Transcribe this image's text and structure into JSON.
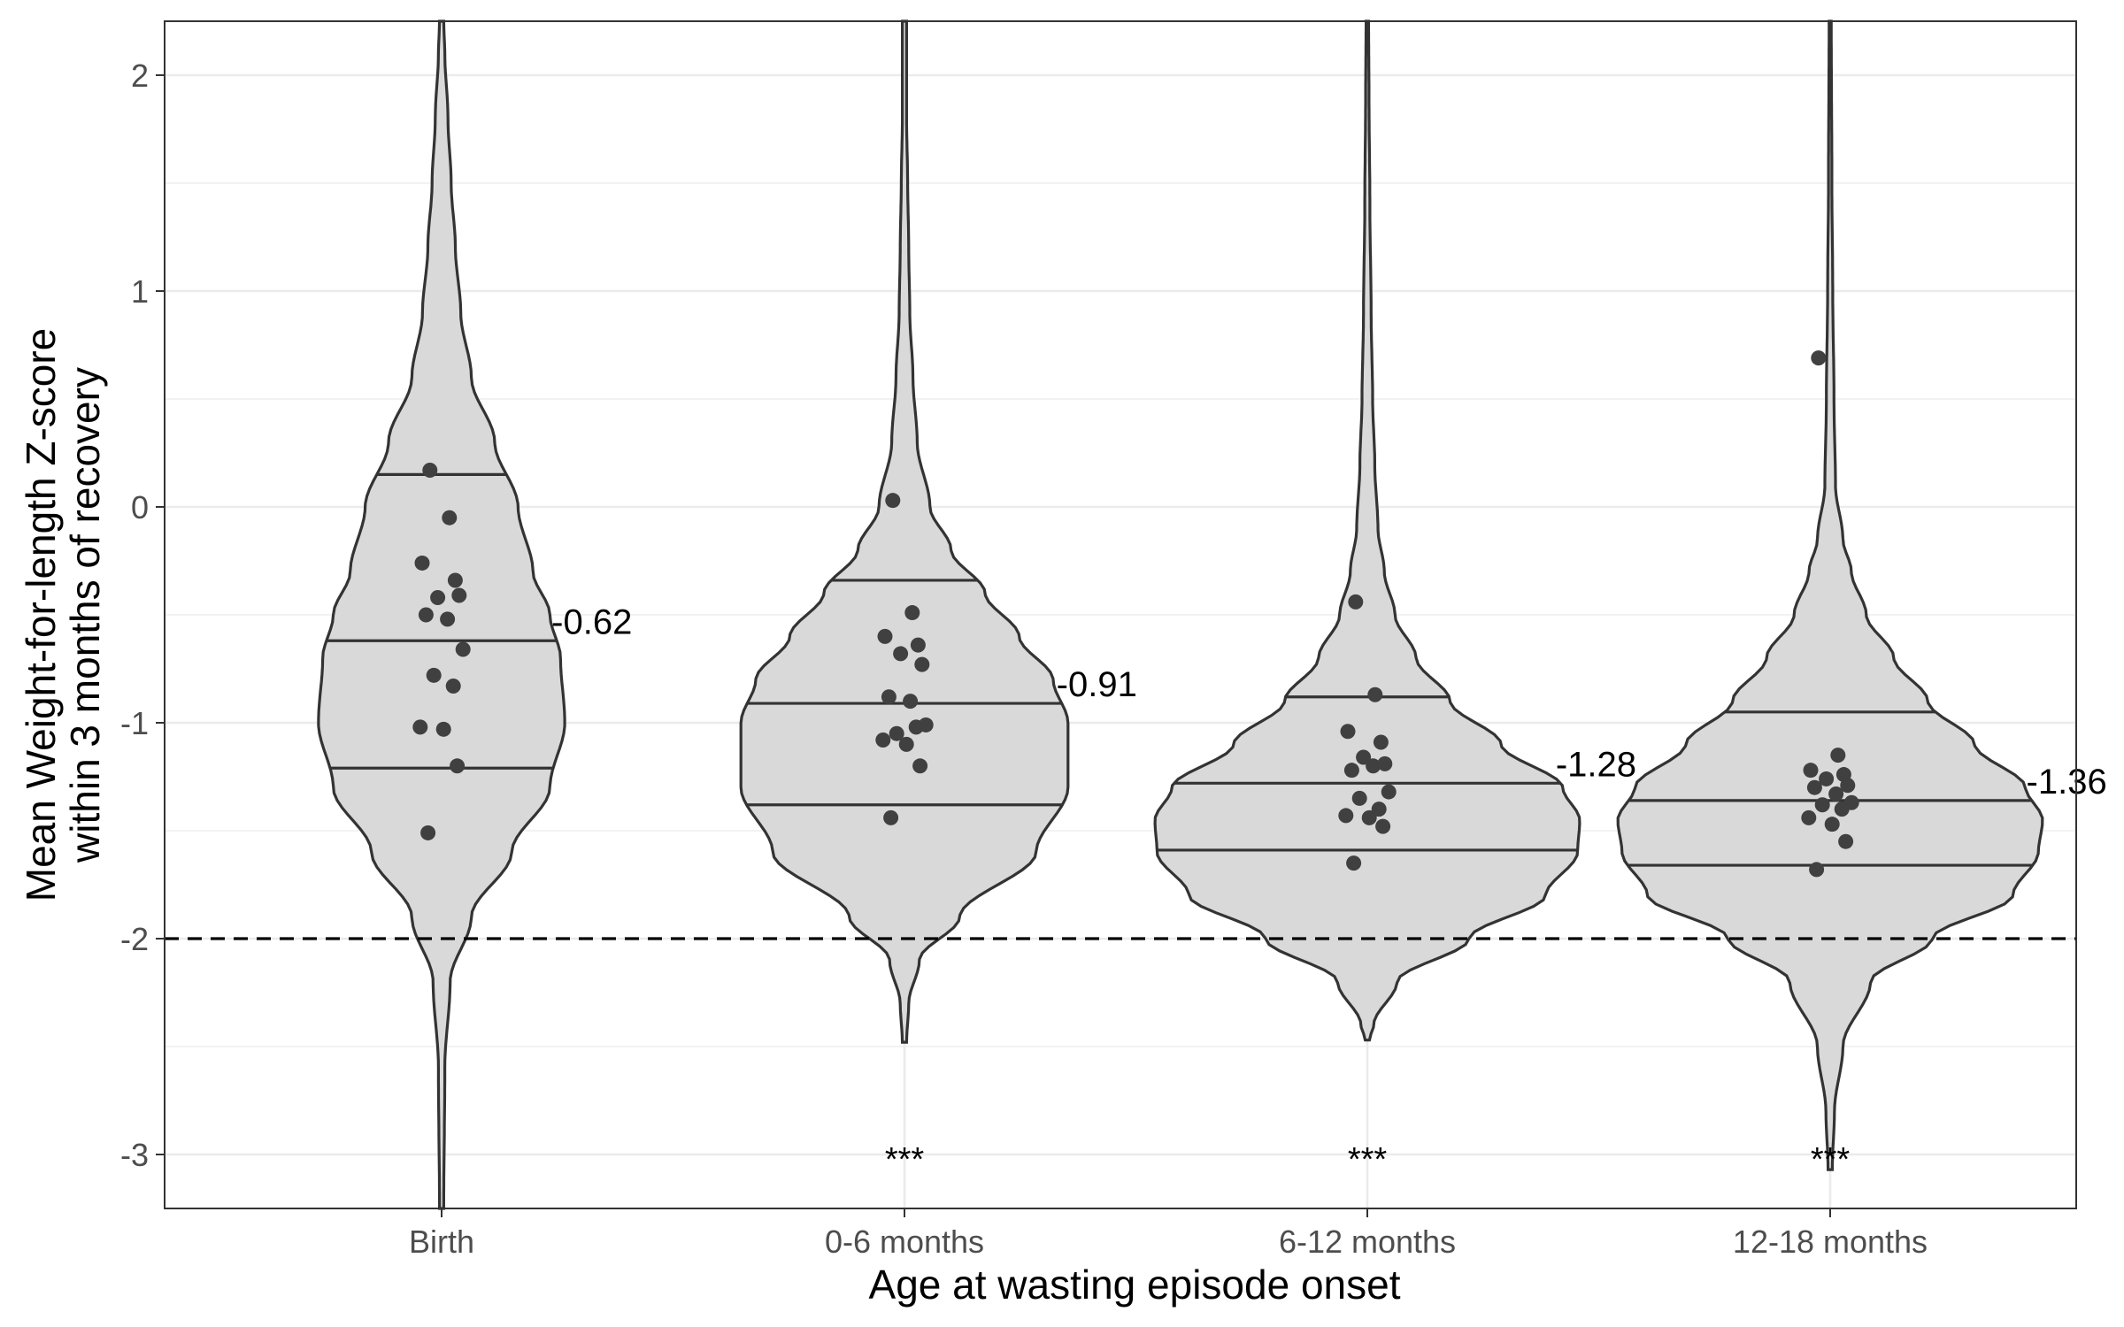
{
  "chart_data": {
    "type": "violin",
    "xlabel": "Age at wasting episode onset",
    "ylabel": [
      "Mean Weight-for-length Z-score",
      "within 3 months of recovery"
    ],
    "ylim": [
      -3.25,
      2.25
    ],
    "yticks": [
      2,
      1,
      0,
      -1,
      -2,
      -3
    ],
    "ytick_labels": [
      "2",
      "1",
      "0",
      "-1",
      "-2",
      "-3"
    ],
    "grid": true,
    "reference_line": {
      "y": -2,
      "style": "dashed"
    },
    "colors": {
      "violin_fill": "#d9d9d9",
      "violin_stroke": "#333333",
      "point": "#404040",
      "grid": "#ebebeb"
    },
    "categories": [
      {
        "name": "Birth",
        "quartiles": [
          -1.21,
          -0.62,
          0.15
        ],
        "median_label": "-0.62",
        "significance": "",
        "points": [
          0.17,
          -0.05,
          -0.26,
          -0.34,
          -0.42,
          -0.41,
          -0.5,
          -0.52,
          -0.66,
          -0.78,
          -0.83,
          -1.02,
          -1.03,
          -1.2,
          -1.51
        ],
        "density": [
          [
            -3.25,
            0.01
          ],
          [
            -2.6,
            0.015
          ],
          [
            -2.2,
            0.04
          ],
          [
            -1.9,
            0.14
          ],
          [
            -1.6,
            0.33
          ],
          [
            -1.3,
            0.51
          ],
          [
            -1.0,
            0.58
          ],
          [
            -0.7,
            0.56
          ],
          [
            -0.5,
            0.51
          ],
          [
            -0.3,
            0.43
          ],
          [
            0.0,
            0.36
          ],
          [
            0.3,
            0.25
          ],
          [
            0.6,
            0.14
          ],
          [
            0.9,
            0.09
          ],
          [
            1.2,
            0.065
          ],
          [
            1.5,
            0.045
          ],
          [
            1.8,
            0.03
          ],
          [
            2.1,
            0.015
          ],
          [
            2.25,
            0.01
          ]
        ]
      },
      {
        "name": "0-6 months",
        "quartiles": [
          -1.38,
          -0.91,
          -0.34
        ],
        "median_label": "-0.91",
        "significance": "***",
        "points": [
          0.03,
          -0.49,
          -0.6,
          -0.64,
          -0.68,
          -0.73,
          -0.88,
          -0.9,
          -1.01,
          -1.05,
          -1.02,
          -1.08,
          -1.1,
          -1.2,
          -1.44
        ],
        "density": [
          [
            -2.48,
            0.01
          ],
          [
            -2.3,
            0.02
          ],
          [
            -2.1,
            0.07
          ],
          [
            -1.9,
            0.26
          ],
          [
            -1.6,
            0.62
          ],
          [
            -1.3,
            0.77
          ],
          [
            -1.0,
            0.77
          ],
          [
            -0.8,
            0.7
          ],
          [
            -0.6,
            0.54
          ],
          [
            -0.4,
            0.38
          ],
          [
            -0.2,
            0.22
          ],
          [
            0.0,
            0.12
          ],
          [
            0.3,
            0.06
          ],
          [
            0.6,
            0.04
          ],
          [
            0.9,
            0.025
          ],
          [
            1.2,
            0.02
          ],
          [
            1.5,
            0.015
          ],
          [
            1.8,
            0.01
          ],
          [
            2.25,
            0.01
          ]
        ]
      },
      {
        "name": "6-12 months",
        "quartiles": [
          -1.59,
          -1.28,
          -0.88
        ],
        "median_label": "-1.28",
        "significance": "***",
        "points": [
          -0.44,
          -0.87,
          -1.04,
          -1.09,
          -1.16,
          -1.19,
          -1.22,
          -1.2,
          -1.32,
          -1.35,
          -1.4,
          -1.43,
          -1.44,
          -1.48,
          -1.65
        ],
        "density": [
          [
            -2.47,
            0.01
          ],
          [
            -2.4,
            0.03
          ],
          [
            -2.2,
            0.14
          ],
          [
            -2.0,
            0.48
          ],
          [
            -1.8,
            0.84
          ],
          [
            -1.6,
            0.99
          ],
          [
            -1.45,
            1.0
          ],
          [
            -1.3,
            0.92
          ],
          [
            -1.1,
            0.63
          ],
          [
            -0.9,
            0.39
          ],
          [
            -0.7,
            0.23
          ],
          [
            -0.5,
            0.13
          ],
          [
            -0.3,
            0.08
          ],
          [
            -0.1,
            0.05
          ],
          [
            0.2,
            0.035
          ],
          [
            0.5,
            0.025
          ],
          [
            0.9,
            0.018
          ],
          [
            1.4,
            0.012
          ],
          [
            1.9,
            0.008
          ],
          [
            2.25,
            0.006
          ]
        ]
      },
      {
        "name": "12-18 months",
        "quartiles": [
          -1.66,
          -1.36,
          -0.95
        ],
        "median_label": "-1.36",
        "significance": "***",
        "points": [
          0.69,
          -1.15,
          -1.22,
          -1.24,
          -1.26,
          -1.29,
          -1.3,
          -1.33,
          -1.37,
          -1.38,
          -1.4,
          -1.44,
          -1.47,
          -1.55,
          -1.68
        ],
        "density": [
          [
            -3.07,
            0.01
          ],
          [
            -2.8,
            0.02
          ],
          [
            -2.5,
            0.06
          ],
          [
            -2.2,
            0.19
          ],
          [
            -2.0,
            0.48
          ],
          [
            -1.8,
            0.86
          ],
          [
            -1.6,
            0.98
          ],
          [
            -1.45,
            1.0
          ],
          [
            -1.3,
            0.92
          ],
          [
            -1.1,
            0.68
          ],
          [
            -0.9,
            0.46
          ],
          [
            -0.7,
            0.3
          ],
          [
            -0.5,
            0.17
          ],
          [
            -0.3,
            0.1
          ],
          [
            -0.15,
            0.06
          ],
          [
            0.1,
            0.025
          ],
          [
            0.5,
            0.018
          ],
          [
            1.0,
            0.012
          ],
          [
            1.5,
            0.008
          ],
          [
            2.25,
            0.005
          ]
        ]
      }
    ]
  }
}
